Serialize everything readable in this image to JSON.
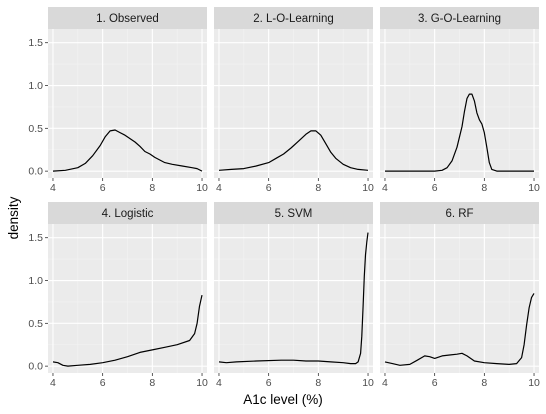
{
  "chart_data": {
    "type": "line",
    "xlabel": "A1c level (%)",
    "ylabel": "density",
    "xlim": [
      3.8,
      10.2
    ],
    "ylim": [
      -0.08,
      1.66
    ],
    "x_ticks": [
      4,
      6,
      8,
      10
    ],
    "y_ticks": [
      0.0,
      0.5,
      1.0,
      1.5
    ],
    "y_tick_labels": [
      "0.0",
      "0.5",
      "1.0",
      "1.5"
    ],
    "grid": true,
    "legend": "none",
    "colors": {
      "panel_background": "#ebebeb",
      "strip_background": "#d9d9d9",
      "grid_major": "#ffffff",
      "line": "#000000"
    },
    "facets": [
      {
        "title": "1. Observed",
        "x": [
          4.0,
          4.5,
          5.0,
          5.3,
          5.6,
          5.9,
          6.1,
          6.3,
          6.5,
          6.7,
          6.9,
          7.1,
          7.3,
          7.5,
          7.7,
          7.9,
          8.1,
          8.3,
          8.5,
          8.8,
          9.2,
          9.6,
          9.8,
          10.0
        ],
        "y": [
          0.0,
          0.01,
          0.04,
          0.09,
          0.18,
          0.3,
          0.4,
          0.47,
          0.48,
          0.45,
          0.42,
          0.38,
          0.34,
          0.29,
          0.23,
          0.2,
          0.16,
          0.13,
          0.1,
          0.08,
          0.06,
          0.04,
          0.03,
          0.0
        ]
      },
      {
        "title": "2. L-O-Learning",
        "x": [
          4.0,
          4.5,
          5.0,
          5.5,
          6.0,
          6.3,
          6.6,
          6.9,
          7.2,
          7.5,
          7.7,
          7.9,
          8.1,
          8.3,
          8.5,
          8.7,
          9.0,
          9.3,
          9.6,
          10.0
        ],
        "y": [
          0.01,
          0.02,
          0.03,
          0.06,
          0.1,
          0.15,
          0.2,
          0.27,
          0.35,
          0.43,
          0.47,
          0.47,
          0.42,
          0.32,
          0.22,
          0.15,
          0.08,
          0.04,
          0.02,
          0.01
        ]
      },
      {
        "title": "3. G-O-Learning",
        "x": [
          4.0,
          5.0,
          6.0,
          6.3,
          6.5,
          6.7,
          6.9,
          7.1,
          7.2,
          7.3,
          7.4,
          7.5,
          7.6,
          7.7,
          7.8,
          7.9,
          8.0,
          8.1,
          8.2,
          8.3,
          8.5,
          9.0,
          10.0
        ],
        "y": [
          0.0,
          0.0,
          0.0,
          0.01,
          0.04,
          0.12,
          0.28,
          0.52,
          0.7,
          0.85,
          0.9,
          0.9,
          0.82,
          0.68,
          0.6,
          0.55,
          0.45,
          0.28,
          0.1,
          0.02,
          0.0,
          0.0,
          0.0
        ]
      },
      {
        "title": "4. Logistic",
        "x": [
          4.0,
          4.2,
          4.4,
          4.6,
          5.0,
          5.5,
          6.0,
          6.5,
          7.0,
          7.5,
          8.0,
          8.5,
          9.0,
          9.5,
          9.7,
          9.8,
          9.9,
          10.0
        ],
        "y": [
          0.05,
          0.04,
          0.01,
          0.0,
          0.01,
          0.02,
          0.04,
          0.07,
          0.11,
          0.16,
          0.19,
          0.22,
          0.25,
          0.3,
          0.38,
          0.5,
          0.7,
          0.83
        ]
      },
      {
        "title": "5. SVM",
        "x": [
          4.0,
          4.3,
          4.7,
          5.5,
          6.5,
          7.0,
          7.5,
          8.0,
          8.5,
          9.0,
          9.3,
          9.5,
          9.6,
          9.7,
          9.75,
          9.8,
          9.85,
          9.9,
          9.95,
          10.0
        ],
        "y": [
          0.05,
          0.04,
          0.05,
          0.06,
          0.07,
          0.07,
          0.06,
          0.06,
          0.05,
          0.04,
          0.03,
          0.03,
          0.05,
          0.15,
          0.35,
          0.7,
          1.05,
          1.3,
          1.45,
          1.56
        ]
      },
      {
        "title": "6. RF",
        "x": [
          4.0,
          4.3,
          4.6,
          5.0,
          5.3,
          5.6,
          5.8,
          6.0,
          6.3,
          6.6,
          6.9,
          7.1,
          7.3,
          7.6,
          8.0,
          8.5,
          9.0,
          9.3,
          9.5,
          9.6,
          9.7,
          9.8,
          9.9,
          10.0
        ],
        "y": [
          0.05,
          0.03,
          0.01,
          0.02,
          0.07,
          0.12,
          0.11,
          0.09,
          0.12,
          0.13,
          0.14,
          0.15,
          0.12,
          0.06,
          0.04,
          0.03,
          0.02,
          0.03,
          0.1,
          0.25,
          0.48,
          0.68,
          0.8,
          0.85
        ]
      }
    ]
  }
}
